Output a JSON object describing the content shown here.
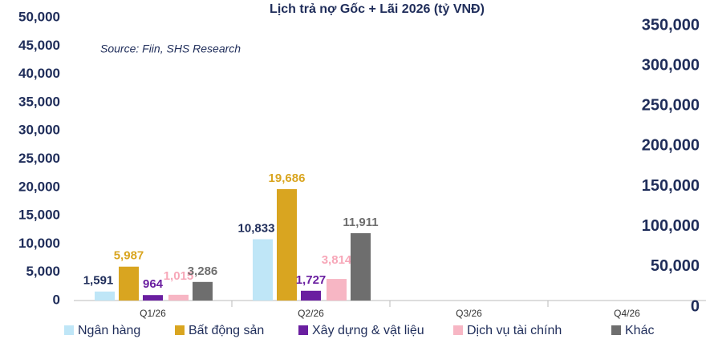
{
  "chart_data": {
    "type": "bar",
    "title": "Lịch trả nợ Gốc + Lãi 2026 (tỷ VNĐ)",
    "subtitle": "Source: Fiin, SHS Research",
    "categories": [
      "Q1/26",
      "Q2/26",
      "Q3/26",
      "Q4/26"
    ],
    "series": [
      {
        "name": "Ngân hàng",
        "color": "#bfe6f7",
        "label_color": "#1f2d5a",
        "values": [
          1591,
          10833,
          null,
          null
        ],
        "value_labels": [
          "1,591",
          "10,833",
          null,
          null
        ]
      },
      {
        "name": "Bất động sản",
        "color": "#d9a520",
        "label_color": "#d9a520",
        "values": [
          5987,
          19686,
          null,
          null
        ],
        "value_labels": [
          "5,987",
          "19,686",
          null,
          null
        ]
      },
      {
        "name": "Xây dựng & vật liệu",
        "color": "#6a1fa0",
        "label_color": "#6a1fa0",
        "values": [
          964,
          1727,
          null,
          null
        ],
        "value_labels": [
          "964",
          "1,727",
          null,
          null
        ]
      },
      {
        "name": "Dịch vụ tài chính",
        "color": "#f7b6c4",
        "label_color": "#f7a7b8",
        "values": [
          1015,
          3814,
          null,
          null
        ],
        "value_labels": [
          "1,015",
          "3,814",
          null,
          null
        ]
      },
      {
        "name": "Khác",
        "color": "#6e6e6e",
        "label_color": "#6e6e6e",
        "values": [
          3286,
          11911,
          null,
          null
        ],
        "value_labels": [
          "3,286",
          "11,911",
          null,
          null
        ]
      }
    ],
    "ylim": [
      0,
      50000
    ],
    "yticks": [
      0,
      {
        "value": 5000,
        "label": "5,000"
      },
      {
        "value": 10000,
        "label": "10,000"
      },
      {
        "value": 15000,
        "label": "15,000"
      },
      {
        "value": 20000,
        "label": "20,000"
      },
      {
        "value": 25000,
        "label": "25,000"
      },
      {
        "value": 30000,
        "label": "30,000"
      },
      {
        "value": 35000,
        "label": "35,000"
      },
      {
        "value": 40000,
        "label": "40,000"
      },
      {
        "value": 45000,
        "label": "45,000"
      },
      {
        "value": 50000,
        "label": "50,000"
      }
    ],
    "y2lim": [
      0,
      350000
    ],
    "y2ticks": [
      0,
      {
        "value": 50000,
        "label": "50,000"
      },
      {
        "value": 100000,
        "label": "100,000"
      },
      {
        "value": 150000,
        "label": "150,000"
      },
      {
        "value": 200000,
        "label": "200,000"
      },
      {
        "value": 250000,
        "label": "250,000"
      },
      {
        "value": 300000,
        "label": "300,000"
      },
      {
        "value": 350000,
        "label": "350,000"
      }
    ],
    "grid": false,
    "legend": "bottom"
  }
}
